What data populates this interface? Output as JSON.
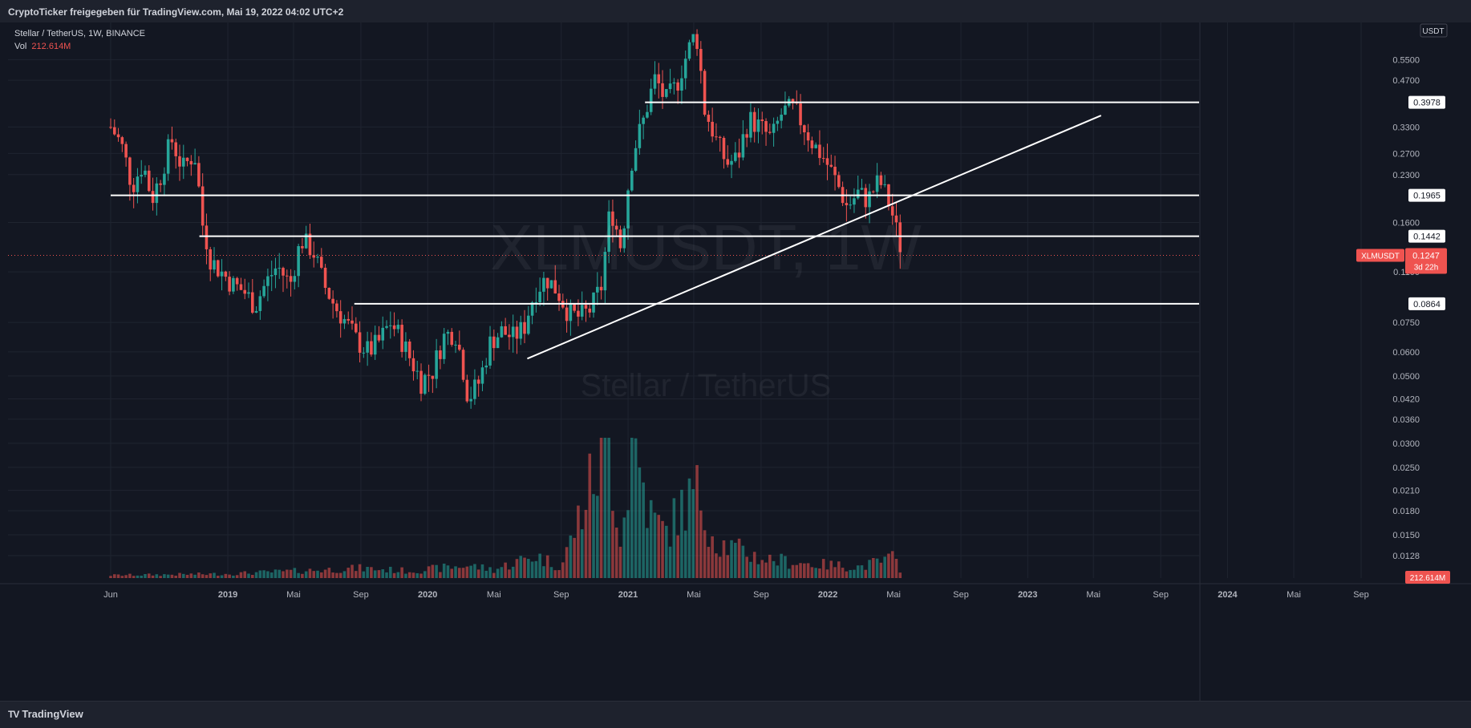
{
  "header": {
    "share_text": "CryptoTicker freigegeben für TradingView.com, Mai 19, 2022 04:02 UTC+2"
  },
  "footer": {
    "brand": "TradingView"
  },
  "chart_data": {
    "type": "candlestick",
    "title": "Stellar / TetherUS, 1W, BINANCE",
    "symbol": "XLMUSDT",
    "watermark": {
      "symbol": "XLMUSDT, 1W",
      "name": "Stellar / TetherUS"
    },
    "volume_label": "Vol",
    "volume_value": "212.614M",
    "currency": "USDT",
    "y_scale": "log",
    "ylim": [
      0.0108,
      0.72
    ],
    "y_ticks": [
      "0.5500",
      "0.4700",
      "0.3300",
      "0.2700",
      "0.2300",
      "0.1600",
      "0.1100",
      "0.0750",
      "0.0600",
      "0.0500",
      "0.0420",
      "0.0360",
      "0.0300",
      "0.0250",
      "0.0210",
      "0.0180",
      "0.0150",
      "0.0128"
    ],
    "x_ticks": [
      "Jun",
      "2019",
      "Mai",
      "Sep",
      "2020",
      "Mai",
      "Sep",
      "2021",
      "Mai",
      "Sep",
      "2022",
      "Mai",
      "Sep",
      "2023",
      "Mai",
      "Sep",
      "2024",
      "Mai",
      "Sep"
    ],
    "x_tick_dates": [
      "2018-06-01",
      "2019-01-01",
      "2019-05-01",
      "2019-09-01",
      "2020-01-01",
      "2020-05-01",
      "2020-09-01",
      "2021-01-01",
      "2021-05-01",
      "2021-09-01",
      "2022-01-01",
      "2022-05-01",
      "2022-09-01",
      "2023-01-01",
      "2023-05-01",
      "2023-09-01",
      "2024-01-01",
      "2024-05-01",
      "2024-09-01"
    ],
    "xlim": [
      "2018-06-01",
      "2024-09-01"
    ],
    "current_price": {
      "label": "XLMUSDT",
      "value": "0.1247",
      "countdown": "3d 22h",
      "price": 0.1247
    },
    "volume_badge": "212.614M",
    "colors": {
      "up": "#26a69a",
      "down": "#ef5350",
      "line": "#ffffff",
      "background": "#131722",
      "grid": "#1f2430"
    },
    "horizontal_levels": [
      {
        "price": 0.3978,
        "label": "0.3978",
        "start": "2021-02-01"
      },
      {
        "price": 0.1965,
        "label": "0.1965",
        "start": "2018-06-01"
      },
      {
        "price": 0.1442,
        "label": "0.1442",
        "start": "2018-11-10"
      },
      {
        "price": 0.0864,
        "label": "0.0864",
        "start": "2019-08-20"
      }
    ],
    "trend_line": {
      "start": {
        "date": "2020-07-01",
        "price": 0.057
      },
      "end": {
        "date": "2023-05-15",
        "price": 0.36
      }
    },
    "price_path": [
      [
        "2018-06-01",
        0.33
      ],
      [
        "2018-06-20",
        0.29
      ],
      [
        "2018-07-10",
        0.21
      ],
      [
        "2018-07-30",
        0.25
      ],
      [
        "2018-08-15",
        0.19
      ],
      [
        "2018-09-01",
        0.23
      ],
      [
        "2018-09-20",
        0.3
      ],
      [
        "2018-10-10",
        0.24
      ],
      [
        "2018-11-01",
        0.27
      ],
      [
        "2018-11-15",
        0.16
      ],
      [
        "2018-12-01",
        0.12
      ],
      [
        "2018-12-20",
        0.11
      ],
      [
        "2019-01-10",
        0.1
      ],
      [
        "2019-01-30",
        0.095
      ],
      [
        "2019-02-20",
        0.085
      ],
      [
        "2019-03-10",
        0.1
      ],
      [
        "2019-04-01",
        0.115
      ],
      [
        "2019-04-25",
        0.1
      ],
      [
        "2019-05-15",
        0.14
      ],
      [
        "2019-06-05",
        0.13
      ],
      [
        "2019-06-25",
        0.1
      ],
      [
        "2019-07-15",
        0.085
      ],
      [
        "2019-08-05",
        0.075
      ],
      [
        "2019-08-25",
        0.065
      ],
      [
        "2019-09-15",
        0.06
      ],
      [
        "2019-10-05",
        0.065
      ],
      [
        "2019-10-25",
        0.075
      ],
      [
        "2019-11-10",
        0.068
      ],
      [
        "2019-11-30",
        0.057
      ],
      [
        "2019-12-20",
        0.048
      ],
      [
        "2020-01-10",
        0.052
      ],
      [
        "2020-02-01",
        0.068
      ],
      [
        "2020-02-20",
        0.07
      ],
      [
        "2020-03-15",
        0.042
      ],
      [
        "2020-04-05",
        0.048
      ],
      [
        "2020-04-25",
        0.065
      ],
      [
        "2020-05-15",
        0.07
      ],
      [
        "2020-06-05",
        0.067
      ],
      [
        "2020-06-25",
        0.072
      ],
      [
        "2020-07-15",
        0.095
      ],
      [
        "2020-08-05",
        0.105
      ],
      [
        "2020-08-25",
        0.095
      ],
      [
        "2020-09-15",
        0.08
      ],
      [
        "2020-10-05",
        0.078
      ],
      [
        "2020-10-25",
        0.083
      ],
      [
        "2020-11-15",
        0.1
      ],
      [
        "2020-11-30",
        0.18
      ],
      [
        "2020-12-20",
        0.13
      ],
      [
        "2021-01-10",
        0.27
      ],
      [
        "2021-01-30",
        0.35
      ],
      [
        "2021-02-20",
        0.48
      ],
      [
        "2021-03-10",
        0.4
      ],
      [
        "2021-03-30",
        0.45
      ],
      [
        "2021-04-15",
        0.55
      ],
      [
        "2021-05-05",
        0.68
      ],
      [
        "2021-05-20",
        0.38
      ],
      [
        "2021-06-10",
        0.3
      ],
      [
        "2021-06-30",
        0.25
      ],
      [
        "2021-07-20",
        0.26
      ],
      [
        "2021-08-10",
        0.35
      ],
      [
        "2021-08-30",
        0.33
      ],
      [
        "2021-09-20",
        0.3
      ],
      [
        "2021-10-10",
        0.37
      ],
      [
        "2021-10-30",
        0.38
      ],
      [
        "2021-11-15",
        0.34
      ],
      [
        "2021-12-05",
        0.29
      ],
      [
        "2021-12-25",
        0.26
      ],
      [
        "2022-01-15",
        0.22
      ],
      [
        "2022-02-05",
        0.18
      ],
      [
        "2022-02-25",
        0.2
      ],
      [
        "2022-03-15",
        0.19
      ],
      [
        "2022-04-05",
        0.22
      ],
      [
        "2022-04-25",
        0.18
      ],
      [
        "2022-05-10",
        0.14
      ],
      [
        "2022-05-18",
        0.1247
      ]
    ],
    "volume_path": [
      [
        "2018-06-01",
        0.02
      ],
      [
        "2019-01-01",
        0.03
      ],
      [
        "2019-09-01",
        0.07
      ],
      [
        "2019-12-01",
        0.05
      ],
      [
        "2020-03-15",
        0.09
      ],
      [
        "2020-05-01",
        0.06
      ],
      [
        "2020-07-15",
        0.16
      ],
      [
        "2020-09-01",
        0.08
      ],
      [
        "2020-11-25",
        1.0
      ],
      [
        "2020-12-20",
        0.26
      ],
      [
        "2021-01-10",
        1.0
      ],
      [
        "2021-02-10",
        0.45
      ],
      [
        "2021-03-10",
        0.32
      ],
      [
        "2021-04-15",
        0.53
      ],
      [
        "2021-05-10",
        0.6
      ],
      [
        "2021-06-10",
        0.26
      ],
      [
        "2021-09-01",
        0.14
      ],
      [
        "2021-12-01",
        0.1
      ],
      [
        "2022-03-01",
        0.08
      ],
      [
        "2022-05-01",
        0.14
      ],
      [
        "2022-05-18",
        0.04
      ]
    ]
  }
}
